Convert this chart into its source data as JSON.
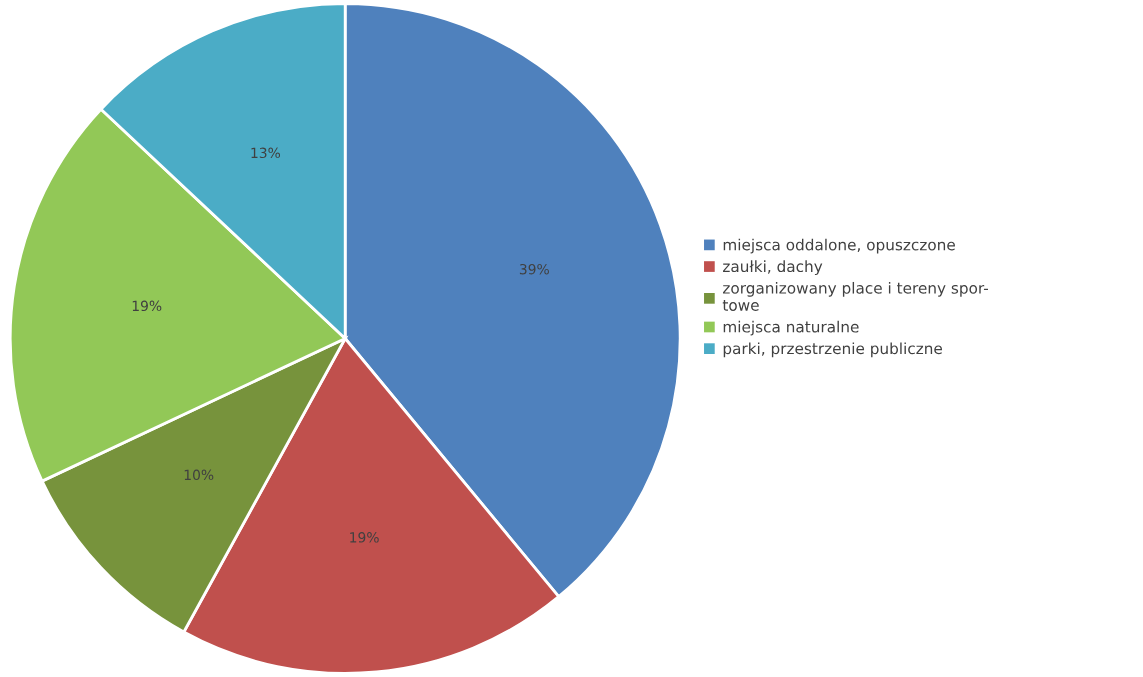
{
  "chart_data": {
    "type": "pie",
    "categories": [
      "miejsca oddalone, opuszczone",
      "zaułki, dachy",
      "zorganizowany place i tereny spor-\ntowe",
      "miejsca naturalne",
      "parki, przestrzenie publiczne"
    ],
    "values": [
      39,
      19,
      10,
      19,
      13
    ],
    "colors": [
      "#4f81bd",
      "#c0504d",
      "#77933c",
      "#92c857",
      "#4bacc6"
    ],
    "value_labels": [
      "39%",
      "19%",
      "10%",
      "19%",
      "13%"
    ],
    "legend": "right"
  }
}
